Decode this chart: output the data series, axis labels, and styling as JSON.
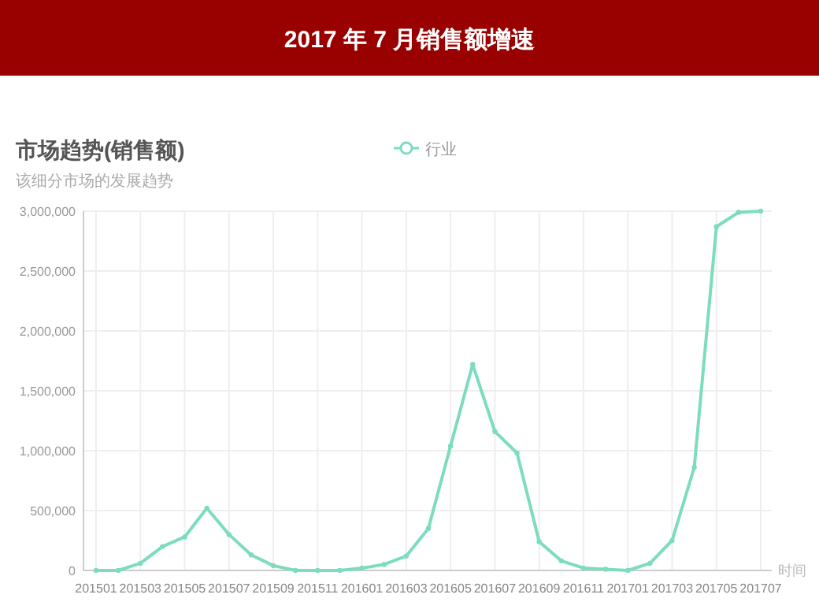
{
  "chart_data": {
    "type": "line",
    "title": "2017 年 7 月销售额增速",
    "subtitle": "市场趋势(销售额)",
    "annotations": [
      "该细分市场的发展趋势"
    ],
    "xlabel": "时间",
    "categories": [
      "201501",
      null,
      "201503",
      null,
      "201505",
      null,
      "201507",
      null,
      "201509",
      null,
      "201511",
      null,
      "201601",
      null,
      "201603",
      null,
      "201605",
      null,
      "201607",
      null,
      "201609",
      null,
      "201611",
      null,
      "201701",
      null,
      "201703",
      null,
      "201705",
      null,
      "201707"
    ],
    "series": [
      {
        "name": "行业",
        "color": "#7ddcc0",
        "values": [
          0,
          0,
          60000,
          200000,
          280000,
          520000,
          300000,
          130000,
          40000,
          0,
          0,
          0,
          20000,
          50000,
          120000,
          350000,
          1040000,
          1720000,
          1160000,
          980000,
          240000,
          80000,
          20000,
          10000,
          0,
          60000,
          250000,
          860000,
          2870000,
          2990000,
          3000000
        ]
      }
    ],
    "ylim": [
      0,
      3000000
    ],
    "yticks": [
      {
        "value": 0,
        "label": "0"
      },
      {
        "value": 500000,
        "label": "500,000"
      },
      {
        "value": 1000000,
        "label": "1,000,000"
      },
      {
        "value": 1500000,
        "label": "1,500,000"
      },
      {
        "value": 2000000,
        "label": "2,000,000"
      },
      {
        "value": 2500000,
        "label": "2,500,000"
      },
      {
        "value": 3000000,
        "label": "3,000,000"
      }
    ],
    "grid": true,
    "legend": "top",
    "marker": "circle",
    "line_style": "solid"
  }
}
